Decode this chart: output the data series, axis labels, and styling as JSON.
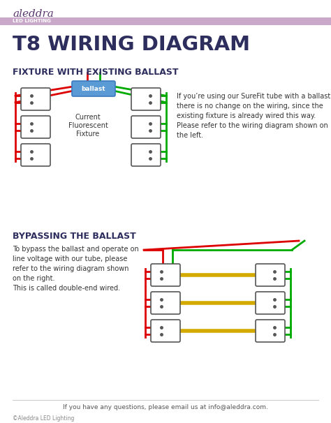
{
  "bg_color": "#ffffff",
  "header_bar_color": "#c9a8c9",
  "header_text_aleddra": "aleddra",
  "header_text_led": "LED LIGHTING",
  "title": "T8 WIRING DIAGRAM",
  "title_color": "#2d2d5e",
  "section1_title": "FIXTURE WITH EXISTING BALLAST",
  "section1_color": "#2d2d5e",
  "section2_title": "BYPASSING THE BALLAST",
  "section2_color": "#2d2d5e",
  "ballast_box_color": "#5b9bd5",
  "ballast_text": "ballast",
  "ballast_text_color": "#ffffff",
  "fixture_label": "Current\nFluorescent\nFixture",
  "socket_border_color": "#555555",
  "red_wire": "#dd0000",
  "green_wire": "#00aa00",
  "yellow_wire": "#d4aa00",
  "desc1": "If you’re using our SureFit tube with a ballast,\nthere is no change on the wiring, since the\nexisting fixture is already wired this way.\nPlease refer to the wiring diagram shown on\nthe left.",
  "desc2": "To bypass the ballast and operate on\nline voltage with our tube, please\nrefer to the wiring diagram shown\non the right.\nThis is called double-end wired.",
  "footer": "If you have any questions, please email us at info@aleddra.com.",
  "copyright": "©Aleddra LED Lighting"
}
